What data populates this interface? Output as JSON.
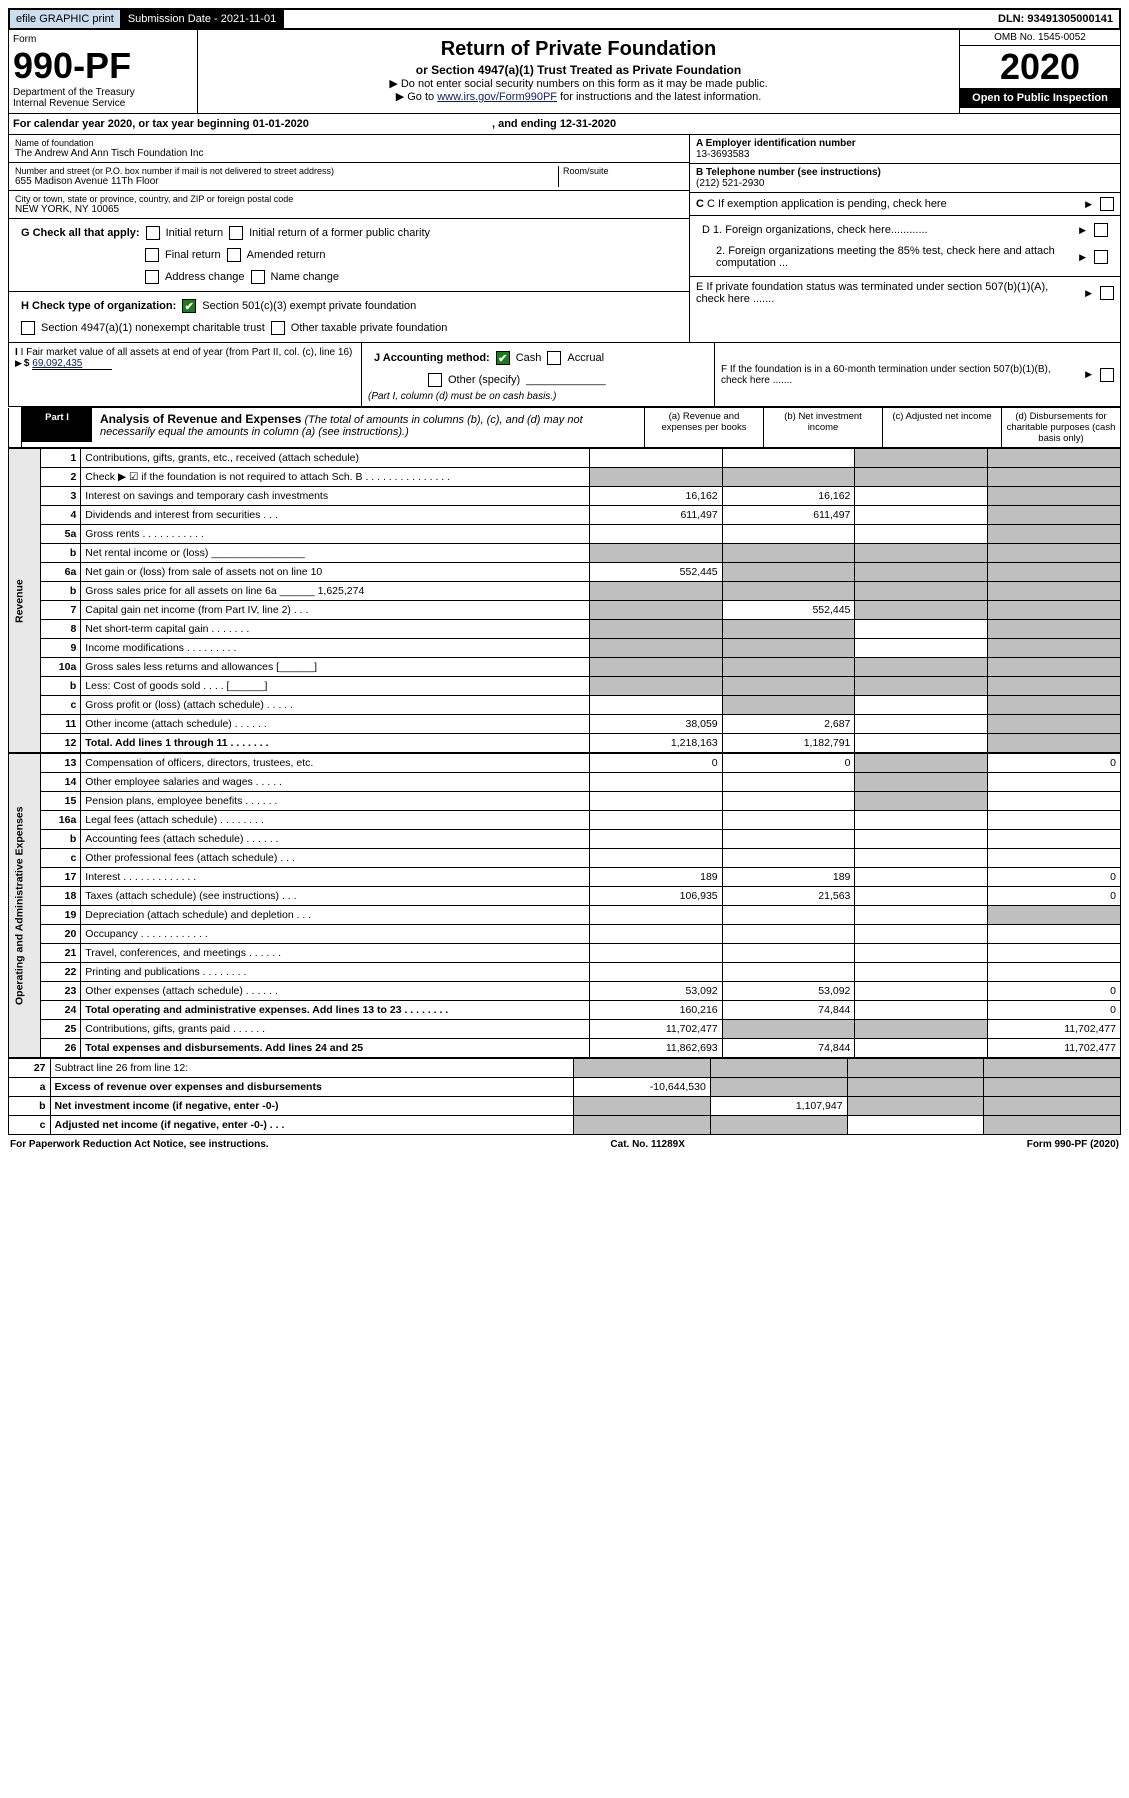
{
  "top": {
    "efile": "efile GRAPHIC print",
    "sub_label": "Submission Date - ",
    "sub_date": "2021-11-01",
    "dln": "DLN: 93491305000141"
  },
  "header": {
    "form_label": "Form",
    "form_no": "990-PF",
    "dept": "Department of the Treasury",
    "irs": "Internal Revenue Service",
    "title": "Return of Private Foundation",
    "subtitle": "or Section 4947(a)(1) Trust Treated as Private Foundation",
    "note1": "▶ Do not enter social security numbers on this form as it may be made public.",
    "note2_pre": "▶ Go to ",
    "note2_link": "www.irs.gov/Form990PF",
    "note2_post": " for instructions and the latest information.",
    "omb": "OMB No. 1545-0052",
    "year": "2020",
    "open": "Open to Public Inspection"
  },
  "cal": {
    "text": "For calendar year 2020, or tax year beginning 01-01-2020",
    "end": ", and ending 12-31-2020"
  },
  "org": {
    "name_label": "Name of foundation",
    "name": "The Andrew And Ann Tisch Foundation Inc",
    "addr_label": "Number and street (or P.O. box number if mail is not delivered to street address)",
    "addr": "655 Madison Avenue 11Th Floor",
    "room_label": "Room/suite",
    "city_label": "City or town, state or province, country, and ZIP or foreign postal code",
    "city": "NEW YORK, NY  10065",
    "a_label": "A Employer identification number",
    "a_val": "13-3693583",
    "b_label": "B Telephone number (see instructions)",
    "b_val": "(212) 521-2930",
    "c_label": "C If exemption application is pending, check here",
    "d1": "D 1. Foreign organizations, check here............",
    "d2": "2. Foreign organizations meeting the 85% test, check here and attach computation ...",
    "e": "E  If private foundation status was terminated under section 507(b)(1)(A), check here .......",
    "f": "F  If the foundation is in a 60-month termination under section 507(b)(1)(B), check here .......",
    "g_label": "G Check all that apply:",
    "g_opts": [
      "Initial return",
      "Initial return of a former public charity",
      "Final return",
      "Amended return",
      "Address change",
      "Name change"
    ],
    "h_label": "H Check type of organization:",
    "h_opt1": "Section 501(c)(3) exempt private foundation",
    "h_opt2": "Section 4947(a)(1) nonexempt charitable trust",
    "h_opt3": "Other taxable private foundation",
    "i_label": "I Fair market value of all assets at end of year (from Part II, col. (c), line 16)",
    "i_val": "69,092,435",
    "j_label": "J Accounting method:",
    "j_cash": "Cash",
    "j_accrual": "Accrual",
    "j_other": "Other (specify)",
    "j_note": "(Part I, column (d) must be on cash basis.)"
  },
  "part1": {
    "label": "Part I",
    "title": "Analysis of Revenue and Expenses",
    "title_note": "(The total of amounts in columns (b), (c), and (d) may not necessarily equal the amounts in column (a) (see instructions).)",
    "col_a": "(a) Revenue and expenses per books",
    "col_b": "(b) Net investment income",
    "col_c": "(c) Adjusted net income",
    "col_d": "(d) Disbursements for charitable purposes (cash basis only)"
  },
  "side": {
    "rev": "Revenue",
    "exp": "Operating and Administrative Expenses"
  },
  "rows": [
    {
      "n": "1",
      "d": "Contributions, gifts, grants, etc., received (attach schedule)",
      "a": "",
      "b": "",
      "c": "s",
      "dd": "s"
    },
    {
      "n": "2",
      "d": "Check ▶ ☑ if the foundation is not required to attach Sch. B    .  .  .  .  .  .  .  .  .  .  .  .  .  .  .",
      "a": "s",
      "b": "s",
      "c": "s",
      "dd": "s"
    },
    {
      "n": "3",
      "d": "Interest on savings and temporary cash investments",
      "a": "16,162",
      "b": "16,162",
      "c": "",
      "dd": "s"
    },
    {
      "n": "4",
      "d": "Dividends and interest from securities   .   .   .",
      "a": "611,497",
      "b": "611,497",
      "c": "",
      "dd": "s"
    },
    {
      "n": "5a",
      "d": "Gross rents   .   .   .   .   .   .   .   .   .   .   .",
      "a": "",
      "b": "",
      "c": "",
      "dd": "s"
    },
    {
      "n": "b",
      "d": "Net rental income or (loss) ________________",
      "a": "s",
      "b": "s",
      "c": "s",
      "dd": "s"
    },
    {
      "n": "6a",
      "d": "Net gain or (loss) from sale of assets not on line 10",
      "a": "552,445",
      "b": "s",
      "c": "s",
      "dd": "s"
    },
    {
      "n": "b",
      "d": "Gross sales price for all assets on line 6a ______ 1,625,274",
      "a": "s",
      "b": "s",
      "c": "s",
      "dd": "s"
    },
    {
      "n": "7",
      "d": "Capital gain net income (from Part IV, line 2)   .   .   .",
      "a": "s",
      "b": "552,445",
      "c": "s",
      "dd": "s"
    },
    {
      "n": "8",
      "d": "Net short-term capital gain   .   .   .   .   .   .   .",
      "a": "s",
      "b": "s",
      "c": "",
      "dd": "s"
    },
    {
      "n": "9",
      "d": "Income modifications .   .   .   .   .   .   .   .   .",
      "a": "s",
      "b": "s",
      "c": "",
      "dd": "s"
    },
    {
      "n": "10a",
      "d": "Gross sales less returns and allowances  [______]",
      "a": "s",
      "b": "s",
      "c": "s",
      "dd": "s"
    },
    {
      "n": "b",
      "d": "Less: Cost of goods sold   .   .   .   . [______]",
      "a": "s",
      "b": "s",
      "c": "s",
      "dd": "s"
    },
    {
      "n": "c",
      "d": "Gross profit or (loss) (attach schedule)   .   .   .   .   .",
      "a": "",
      "b": "s",
      "c": "",
      "dd": "s"
    },
    {
      "n": "11",
      "d": "Other income (attach schedule)   .   .   .   .   .   .",
      "a": "38,059",
      "b": "2,687",
      "c": "",
      "dd": "s"
    },
    {
      "n": "12",
      "d": "Total. Add lines 1 through 11   .   .   .   .   .   .   .",
      "a": "1,218,163",
      "b": "1,182,791",
      "c": "",
      "dd": "s",
      "bold": true
    }
  ],
  "exp_rows": [
    {
      "n": "13",
      "d": "Compensation of officers, directors, trustees, etc.",
      "a": "0",
      "b": "0",
      "c": "s",
      "dd": "0"
    },
    {
      "n": "14",
      "d": "Other employee salaries and wages   .   .   .   .   .",
      "a": "",
      "b": "",
      "c": "s",
      "dd": ""
    },
    {
      "n": "15",
      "d": "Pension plans, employee benefits .   .   .   .   .   .",
      "a": "",
      "b": "",
      "c": "s",
      "dd": ""
    },
    {
      "n": "16a",
      "d": "Legal fees (attach schedule) .   .   .   .   .   .   .   .",
      "a": "",
      "b": "",
      "c": "",
      "dd": ""
    },
    {
      "n": "b",
      "d": "Accounting fees (attach schedule) .   .   .   .   .   .",
      "a": "",
      "b": "",
      "c": "",
      "dd": ""
    },
    {
      "n": "c",
      "d": "Other professional fees (attach schedule)   .   .   .",
      "a": "",
      "b": "",
      "c": "",
      "dd": ""
    },
    {
      "n": "17",
      "d": "Interest .   .   .   .   .   .   .   .   .   .   .   .   .",
      "a": "189",
      "b": "189",
      "c": "",
      "dd": "0"
    },
    {
      "n": "18",
      "d": "Taxes (attach schedule) (see instructions)   .   .   .",
      "a": "106,935",
      "b": "21,563",
      "c": "",
      "dd": "0"
    },
    {
      "n": "19",
      "d": "Depreciation (attach schedule) and depletion   .   .   .",
      "a": "",
      "b": "",
      "c": "",
      "dd": "s"
    },
    {
      "n": "20",
      "d": "Occupancy .   .   .   .   .   .   .   .   .   .   .   .",
      "a": "",
      "b": "",
      "c": "",
      "dd": ""
    },
    {
      "n": "21",
      "d": "Travel, conferences, and meetings .   .   .   .   .   .",
      "a": "",
      "b": "",
      "c": "",
      "dd": ""
    },
    {
      "n": "22",
      "d": "Printing and publications .   .   .   .   .   .   .   .",
      "a": "",
      "b": "",
      "c": "",
      "dd": ""
    },
    {
      "n": "23",
      "d": "Other expenses (attach schedule) .   .   .   .   .   .",
      "a": "53,092",
      "b": "53,092",
      "c": "",
      "dd": "0"
    },
    {
      "n": "24",
      "d": "Total operating and administrative expenses. Add lines 13 to 23   .   .   .   .   .   .   .   .",
      "a": "160,216",
      "b": "74,844",
      "c": "",
      "dd": "0",
      "bold": true
    },
    {
      "n": "25",
      "d": "Contributions, gifts, grants paid   .   .   .   .   .   .",
      "a": "11,702,477",
      "b": "s",
      "c": "s",
      "dd": "11,702,477"
    },
    {
      "n": "26",
      "d": "Total expenses and disbursements. Add lines 24 and 25",
      "a": "11,862,693",
      "b": "74,844",
      "c": "",
      "dd": "11,702,477",
      "bold": true
    }
  ],
  "net_rows": [
    {
      "n": "27",
      "d": "Subtract line 26 from line 12:",
      "a": "s",
      "b": "s",
      "c": "s",
      "dd": "s"
    },
    {
      "n": "a",
      "d": "Excess of revenue over expenses and disbursements",
      "a": "-10,644,530",
      "b": "s",
      "c": "s",
      "dd": "s",
      "bold": true
    },
    {
      "n": "b",
      "d": "Net investment income (if negative, enter -0-)",
      "a": "s",
      "b": "1,107,947",
      "c": "s",
      "dd": "s",
      "bold": true
    },
    {
      "n": "c",
      "d": "Adjusted net income (if negative, enter -0-)   .   .   .",
      "a": "s",
      "b": "s",
      "c": "",
      "dd": "s",
      "bold": true
    }
  ],
  "footer": {
    "left": "For Paperwork Reduction Act Notice, see instructions.",
    "mid": "Cat. No. 11289X",
    "right": "Form 990-PF (2020)"
  }
}
